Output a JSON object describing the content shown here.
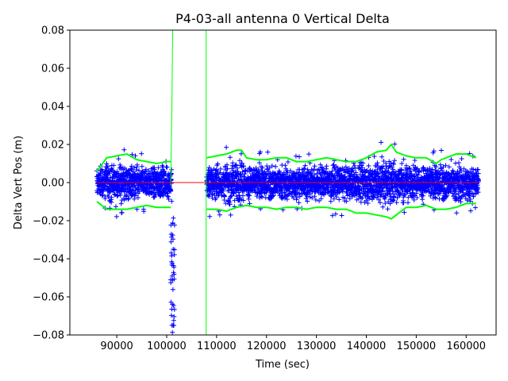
{
  "chart_data": {
    "type": "scatter",
    "title": "P4-03-all antenna 0 Vertical Delta",
    "xlabel": "Time (sec)",
    "ylabel": "Delta Vert Pos (m)",
    "xlim": [
      80600,
      166000
    ],
    "ylim": [
      -0.08,
      0.08
    ],
    "xticks": [
      90000,
      100000,
      110000,
      120000,
      130000,
      140000,
      150000,
      160000
    ],
    "xtick_labels": [
      "90000",
      "100000",
      "110000",
      "120000",
      "130000",
      "140000",
      "150000",
      "160000"
    ],
    "yticks": [
      -0.08,
      -0.06,
      -0.04,
      -0.02,
      0.0,
      0.02,
      0.04,
      0.06,
      0.08
    ],
    "ytick_labels": [
      "−0.08",
      "−0.06",
      "−0.04",
      "−0.02",
      "0.00",
      "0.02",
      "0.04",
      "0.06",
      "0.08"
    ],
    "grid": false,
    "legend": "none",
    "colors": {
      "points": "#0000ff",
      "envelope": "#00ff00",
      "zero_line": "#ff0000"
    },
    "series": [
      {
        "marker": "+",
        "segments": [
          {
            "x_start": 86000,
            "x_end": 101000,
            "y_min": -0.015,
            "y_max": 0.017
          },
          {
            "x_start": 100800,
            "x_end": 101600,
            "y_min": -0.079,
            "y_max": -0.018
          },
          {
            "x_start": 108000,
            "x_end": 162500,
            "y_min": -0.018,
            "y_max": 0.02
          }
        ]
      },
      {
        "style": "line",
        "upper": {
          "x": [
            86000,
            88000,
            90000,
            92000,
            94000,
            96000,
            98000,
            100000,
            100800,
            108000,
            110000,
            112000,
            114000,
            115000,
            116000,
            118000,
            120000,
            122000,
            124000,
            126000,
            128000,
            130000,
            132000,
            134000,
            136000,
            138000,
            140000,
            142000,
            144000,
            145000,
            146000,
            148000,
            150000,
            152000,
            154000,
            155000,
            156000,
            158000,
            160000,
            162000
          ],
          "y": [
            0.006,
            0.013,
            0.014,
            0.015,
            0.012,
            0.011,
            0.01,
            0.011,
            0.011,
            0.013,
            0.014,
            0.015,
            0.017,
            0.017,
            0.013,
            0.012,
            0.012,
            0.013,
            0.013,
            0.011,
            0.011,
            0.012,
            0.013,
            0.012,
            0.011,
            0.011,
            0.013,
            0.016,
            0.017,
            0.02,
            0.016,
            0.014,
            0.013,
            0.013,
            0.01,
            0.012,
            0.013,
            0.015,
            0.015,
            0.013
          ]
        },
        "lower": {
          "x": [
            86000,
            88000,
            90000,
            92000,
            94000,
            96000,
            98000,
            100000,
            100800,
            108000,
            110000,
            112000,
            114000,
            116000,
            118000,
            120000,
            122000,
            124000,
            126000,
            128000,
            130000,
            132000,
            134000,
            136000,
            138000,
            140000,
            142000,
            144000,
            145000,
            146000,
            148000,
            150000,
            152000,
            154000,
            156000,
            158000,
            160000,
            162000
          ],
          "y": [
            -0.01,
            -0.014,
            -0.014,
            -0.014,
            -0.013,
            -0.012,
            -0.013,
            -0.013,
            -0.013,
            -0.014,
            -0.014,
            -0.015,
            -0.013,
            -0.012,
            -0.013,
            -0.013,
            -0.014,
            -0.013,
            -0.013,
            -0.014,
            -0.013,
            -0.013,
            -0.014,
            -0.014,
            -0.016,
            -0.016,
            -0.017,
            -0.018,
            -0.019,
            -0.017,
            -0.013,
            -0.013,
            -0.012,
            -0.014,
            -0.014,
            -0.013,
            -0.011,
            -0.011
          ]
        },
        "vertical_traces": [
          {
            "x": [
              100800,
              101050,
              101200
            ],
            "y": [
              -0.001,
              0.04,
              0.08
            ]
          },
          {
            "x": [
              107900,
              107900
            ],
            "y": [
              -0.08,
              0.08
            ]
          }
        ]
      },
      {
        "style": "line",
        "x": [
          86000,
          162500
        ],
        "y": [
          0.0,
          0.0
        ]
      }
    ]
  }
}
